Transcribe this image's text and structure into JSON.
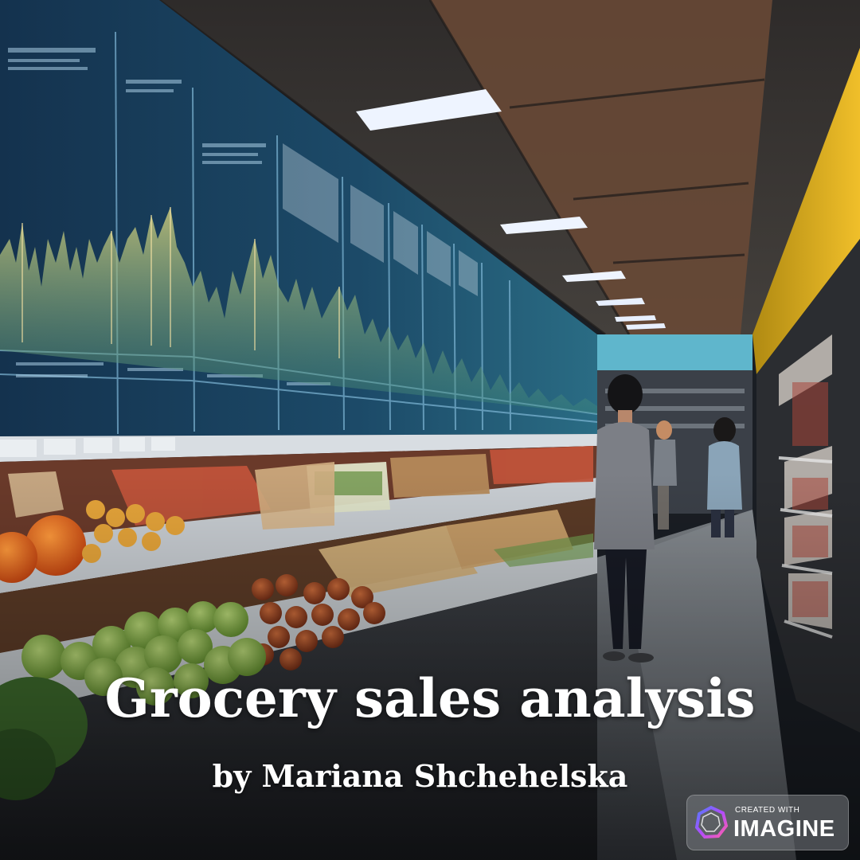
{
  "title": "Grocery sales analysis",
  "subtitle": "by Mariana Shchehelska",
  "badge": {
    "small_text": "CREATED WITH",
    "brand_text": "IMAGINE",
    "icon": "imagine-logo-icon"
  }
}
